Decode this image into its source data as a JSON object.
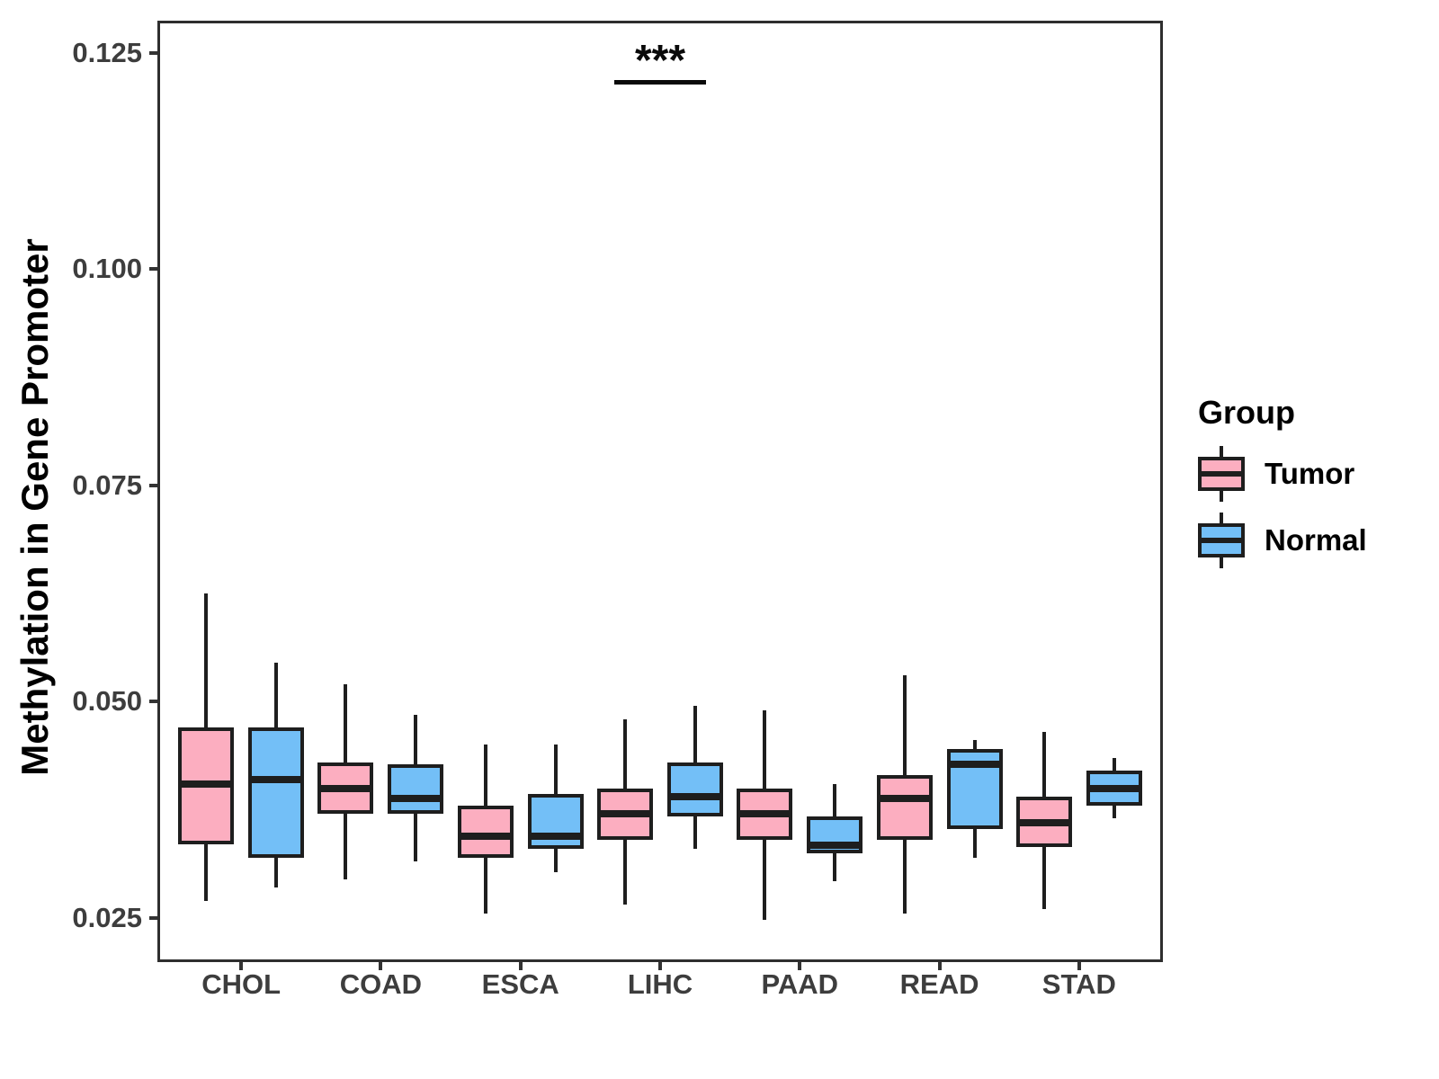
{
  "figure_title": "",
  "y_axis": {
    "title": "Methylation in Gene Promoter",
    "tick_labels": [
      "0.125",
      "0.100",
      "0.075",
      "0.050",
      "0.025"
    ]
  },
  "x_axis": {
    "tick_labels": [
      "CHOL",
      "COAD",
      "ESCA",
      "LIHC",
      "PAAD",
      "READ",
      "STAD"
    ]
  },
  "legend": {
    "title": "Group",
    "items": [
      {
        "label": "Tumor",
        "color": "#FCAEC0"
      },
      {
        "label": "Normal",
        "color": "#73BFF7"
      }
    ]
  },
  "chart_data": {
    "type": "boxplot",
    "title": "",
    "xlabel": "",
    "ylabel": "Methylation in Gene Promoter",
    "categories": [
      "CHOL",
      "COAD",
      "ESCA",
      "LIHC",
      "PAAD",
      "READ",
      "STAD"
    ],
    "ylim": [
      0.0199,
      0.1287
    ],
    "yticks": [
      {
        "value": 0.125,
        "label": "0.125"
      },
      {
        "value": 0.1,
        "label": "0.100"
      },
      {
        "value": 0.075,
        "label": "0.075"
      },
      {
        "value": 0.05,
        "label": "0.050"
      },
      {
        "value": 0.025,
        "label": "0.025"
      }
    ],
    "grid": false,
    "legend_position": "right",
    "series": [
      {
        "name": "Tumor",
        "color": "#FCAEC0",
        "boxes": [
          {
            "whisker_low": 0.027,
            "q1": 0.0335,
            "median": 0.0405,
            "q3": 0.047,
            "whisker_high": 0.0625
          },
          {
            "whisker_low": 0.0295,
            "q1": 0.037,
            "median": 0.04,
            "q3": 0.043,
            "whisker_high": 0.052
          },
          {
            "whisker_low": 0.0255,
            "q1": 0.032,
            "median": 0.0345,
            "q3": 0.038,
            "whisker_high": 0.045
          },
          {
            "whisker_low": 0.0265,
            "q1": 0.034,
            "median": 0.037,
            "q3": 0.04,
            "whisker_high": 0.048
          },
          {
            "whisker_low": 0.0248,
            "q1": 0.034,
            "median": 0.037,
            "q3": 0.04,
            "whisker_high": 0.049
          },
          {
            "whisker_low": 0.0255,
            "q1": 0.034,
            "median": 0.0388,
            "q3": 0.0415,
            "whisker_high": 0.053
          },
          {
            "whisker_low": 0.026,
            "q1": 0.0332,
            "median": 0.036,
            "q3": 0.039,
            "whisker_high": 0.0465
          }
        ]
      },
      {
        "name": "Normal",
        "color": "#73BFF7",
        "boxes": [
          {
            "whisker_low": 0.0285,
            "q1": 0.032,
            "median": 0.041,
            "q3": 0.047,
            "whisker_high": 0.0545
          },
          {
            "whisker_low": 0.0315,
            "q1": 0.037,
            "median": 0.0388,
            "q3": 0.0428,
            "whisker_high": 0.0485
          },
          {
            "whisker_low": 0.0303,
            "q1": 0.033,
            "median": 0.0345,
            "q3": 0.0393,
            "whisker_high": 0.045
          },
          {
            "whisker_low": 0.033,
            "q1": 0.0367,
            "median": 0.039,
            "q3": 0.043,
            "whisker_high": 0.0495
          },
          {
            "whisker_low": 0.0293,
            "q1": 0.0325,
            "median": 0.0334,
            "q3": 0.0367,
            "whisker_high": 0.0405
          },
          {
            "whisker_low": 0.032,
            "q1": 0.0353,
            "median": 0.0428,
            "q3": 0.0445,
            "whisker_high": 0.0456
          },
          {
            "whisker_low": 0.0365,
            "q1": 0.038,
            "median": 0.04,
            "q3": 0.042,
            "whisker_high": 0.0435
          }
        ]
      }
    ],
    "annotations": [
      {
        "label": "***",
        "category": "LIHC",
        "bar_value": 0.1216,
        "text_value": 0.124
      }
    ]
  }
}
